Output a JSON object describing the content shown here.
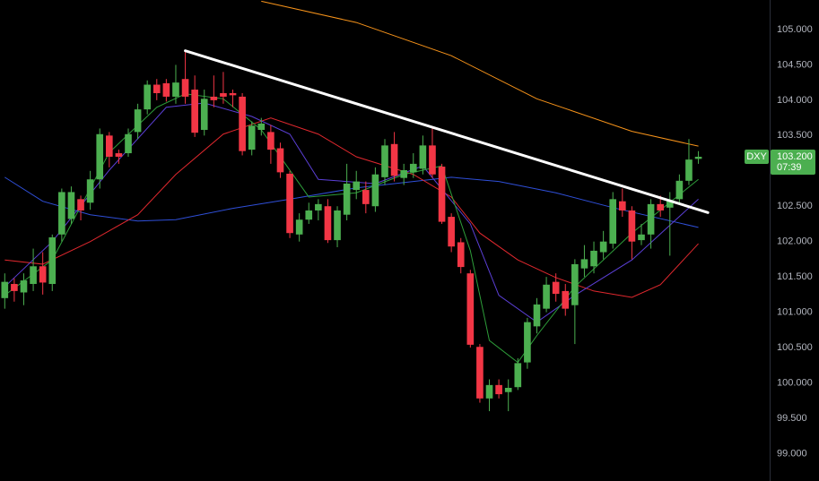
{
  "chart_data": {
    "type": "candlestick",
    "symbol": "DXY",
    "last_price": {
      "value": 103.2,
      "label": "103.200"
    },
    "countdown": "07:39",
    "up_color": "#4caf50",
    "down_color": "#f23645",
    "xlim": [
      -0.5,
      80.5
    ],
    "ylim": [
      98.612,
      105.418
    ],
    "yticks": [
      {
        "value": 105,
        "label": "105.000"
      },
      {
        "value": 104.5,
        "label": "104.500"
      },
      {
        "value": 104,
        "label": "104.000"
      },
      {
        "value": 103.5,
        "label": "103.500"
      },
      {
        "value": 103,
        "label": "103.000"
      },
      {
        "value": 102.5,
        "label": "102.500"
      },
      {
        "value": 102,
        "label": "102.000"
      },
      {
        "value": 101.5,
        "label": "101.500"
      },
      {
        "value": 101,
        "label": "101.000"
      },
      {
        "value": 100.5,
        "label": "100.500"
      },
      {
        "value": 100,
        "label": "100.000"
      },
      {
        "value": 99.5,
        "label": "99.500"
      },
      {
        "value": 99,
        "label": "99.000"
      }
    ],
    "open": [
      101.2,
      101.4,
      101.28,
      101.4,
      101.65,
      101.4,
      102.1,
      102.32,
      102.6,
      102.55,
      102.88,
      103.5,
      103.25,
      103.25,
      103.55,
      103.87,
      104.22,
      104.24,
      104.05,
      104.3,
      104.15,
      103.58,
      104.05,
      104.1,
      104.1,
      104.05,
      103.3,
      103.58,
      103.55,
      103.32,
      102.96,
      102.1,
      102.31,
      102.44,
      102.5,
      102.02,
      102.38,
      102.73,
      102.73,
      102.5,
      102.91,
      103.38,
      102.9,
      102.98,
      103.03,
      103.36,
      103.06,
      102.35,
      101.99,
      101.55,
      100.51,
      99.78,
      99.97,
      99.87,
      99.94,
      100.29,
      100.8,
      101.05,
      101.43,
      101.3,
      101.1,
      101.62,
      101.65,
      101.85,
      101.97,
      102.57,
      102.44,
      102.02,
      102.1,
      102.53,
      102.48,
      102.6,
      102.86,
      103.17
    ],
    "high": [
      101.55,
      101.48,
      101.55,
      101.9,
      101.85,
      102.1,
      102.75,
      102.78,
      102.65,
      103.0,
      103.6,
      103.55,
      103.3,
      103.6,
      103.95,
      104.28,
      104.3,
      104.3,
      104.5,
      104.7,
      104.35,
      104.15,
      104.35,
      104.4,
      104.15,
      104.1,
      103.7,
      103.75,
      103.65,
      103.4,
      103.0,
      102.4,
      102.55,
      102.6,
      102.6,
      102.5,
      103.1,
      103.0,
      102.85,
      103.05,
      103.45,
      103.55,
      103.1,
      103.25,
      103.5,
      103.6,
      103.1,
      102.4,
      102.05,
      101.6,
      100.55,
      100.05,
      100.05,
      100.05,
      100.35,
      100.92,
      101.2,
      101.5,
      101.55,
      101.4,
      101.75,
      101.95,
      102.0,
      102.15,
      102.7,
      102.75,
      102.5,
      102.25,
      102.6,
      102.65,
      102.7,
      102.95,
      103.45,
      103.28
    ],
    "low": [
      101.05,
      101.15,
      101.1,
      101.3,
      101.25,
      101.3,
      102.0,
      102.25,
      102.3,
      102.45,
      102.75,
      103.05,
      103.1,
      103.2,
      103.45,
      103.8,
      104.0,
      103.98,
      103.95,
      103.95,
      103.48,
      103.5,
      103.9,
      103.95,
      103.9,
      103.22,
      103.22,
      103.5,
      103.1,
      102.9,
      102.05,
      102.0,
      102.25,
      102.3,
      101.98,
      101.92,
      102.3,
      102.6,
      102.4,
      102.42,
      102.8,
      102.85,
      102.8,
      102.9,
      102.95,
      102.9,
      102.25,
      101.85,
      101.55,
      100.5,
      99.72,
      99.6,
      99.78,
      99.6,
      99.9,
      100.2,
      100.7,
      101.0,
      101.15,
      100.95,
      100.55,
      101.5,
      101.55,
      101.75,
      101.9,
      102.35,
      101.75,
      101.95,
      101.9,
      102.35,
      101.8,
      102.55,
      102.8,
      103.1
    ],
    "close": [
      101.43,
      101.3,
      101.45,
      101.65,
      101.42,
      102.06,
      102.7,
      102.7,
      102.44,
      102.88,
      103.52,
      103.2,
      103.2,
      103.52,
      103.87,
      104.22,
      104.1,
      104.05,
      104.25,
      104.05,
      103.54,
      104.02,
      104.0,
      104.05,
      104.07,
      103.28,
      103.64,
      103.67,
      103.3,
      102.98,
      102.12,
      102.31,
      102.44,
      102.53,
      102.02,
      102.44,
      102.82,
      102.85,
      102.53,
      102.95,
      103.36,
      102.93,
      103.01,
      103.1,
      103.36,
      102.95,
      102.28,
      101.93,
      101.64,
      100.54,
      99.78,
      99.97,
      99.84,
      99.93,
      100.28,
      100.86,
      101.11,
      101.39,
      101.26,
      101.05,
      101.68,
      101.75,
      101.87,
      102.0,
      102.6,
      102.44,
      102.0,
      102.1,
      102.53,
      102.44,
      102.57,
      102.86,
      103.16,
      103.2
    ],
    "lines": [
      {
        "color": "#f7931a",
        "x": [
          27,
          37,
          47,
          56,
          66,
          73
        ],
        "values": [
          105.4,
          105.1,
          104.63,
          104.02,
          103.56,
          103.35
        ]
      },
      {
        "color": "#2f4fd8",
        "x": [
          0,
          4,
          9,
          14,
          18,
          24,
          30,
          37,
          47,
          52,
          58,
          64,
          73
        ],
        "values": [
          102.91,
          102.57,
          102.38,
          102.29,
          102.31,
          102.47,
          102.6,
          102.76,
          102.91,
          102.85,
          102.69,
          102.48,
          102.2
        ]
      },
      {
        "color": "#e0282e",
        "x": [
          0,
          4,
          9,
          14,
          18,
          23,
          28,
          33,
          37,
          43,
          47,
          50,
          54,
          58,
          62,
          66,
          69,
          73
        ],
        "values": [
          101.74,
          101.68,
          102.0,
          102.38,
          102.95,
          103.52,
          103.75,
          103.52,
          103.2,
          102.95,
          102.63,
          102.12,
          101.74,
          101.49,
          101.3,
          101.21,
          101.39,
          101.97
        ]
      },
      {
        "color": "#5b3fd6",
        "x": [
          0,
          5,
          11,
          17,
          21,
          26,
          30,
          33,
          39,
          44,
          49,
          52,
          56,
          60,
          66,
          73
        ],
        "values": [
          101.36,
          102.0,
          103.01,
          103.9,
          103.96,
          103.77,
          103.52,
          102.88,
          102.82,
          103.07,
          102.25,
          101.24,
          100.86,
          101.24,
          101.74,
          102.6
        ]
      },
      {
        "color": "#2e9e3a",
        "x": [
          0,
          5,
          11,
          16,
          19,
          23,
          27,
          32,
          37,
          42,
          46,
          49,
          51,
          54,
          56,
          60,
          66,
          73
        ],
        "values": [
          101.24,
          101.74,
          103.26,
          103.9,
          104.09,
          104.02,
          103.58,
          102.63,
          102.69,
          102.95,
          103.07,
          101.87,
          100.6,
          100.29,
          100.67,
          101.36,
          102.12,
          102.88
        ]
      }
    ],
    "trendline": {
      "color": "#ffffff",
      "x": [
        19,
        74
      ],
      "values": [
        104.7,
        102.41
      ]
    }
  }
}
